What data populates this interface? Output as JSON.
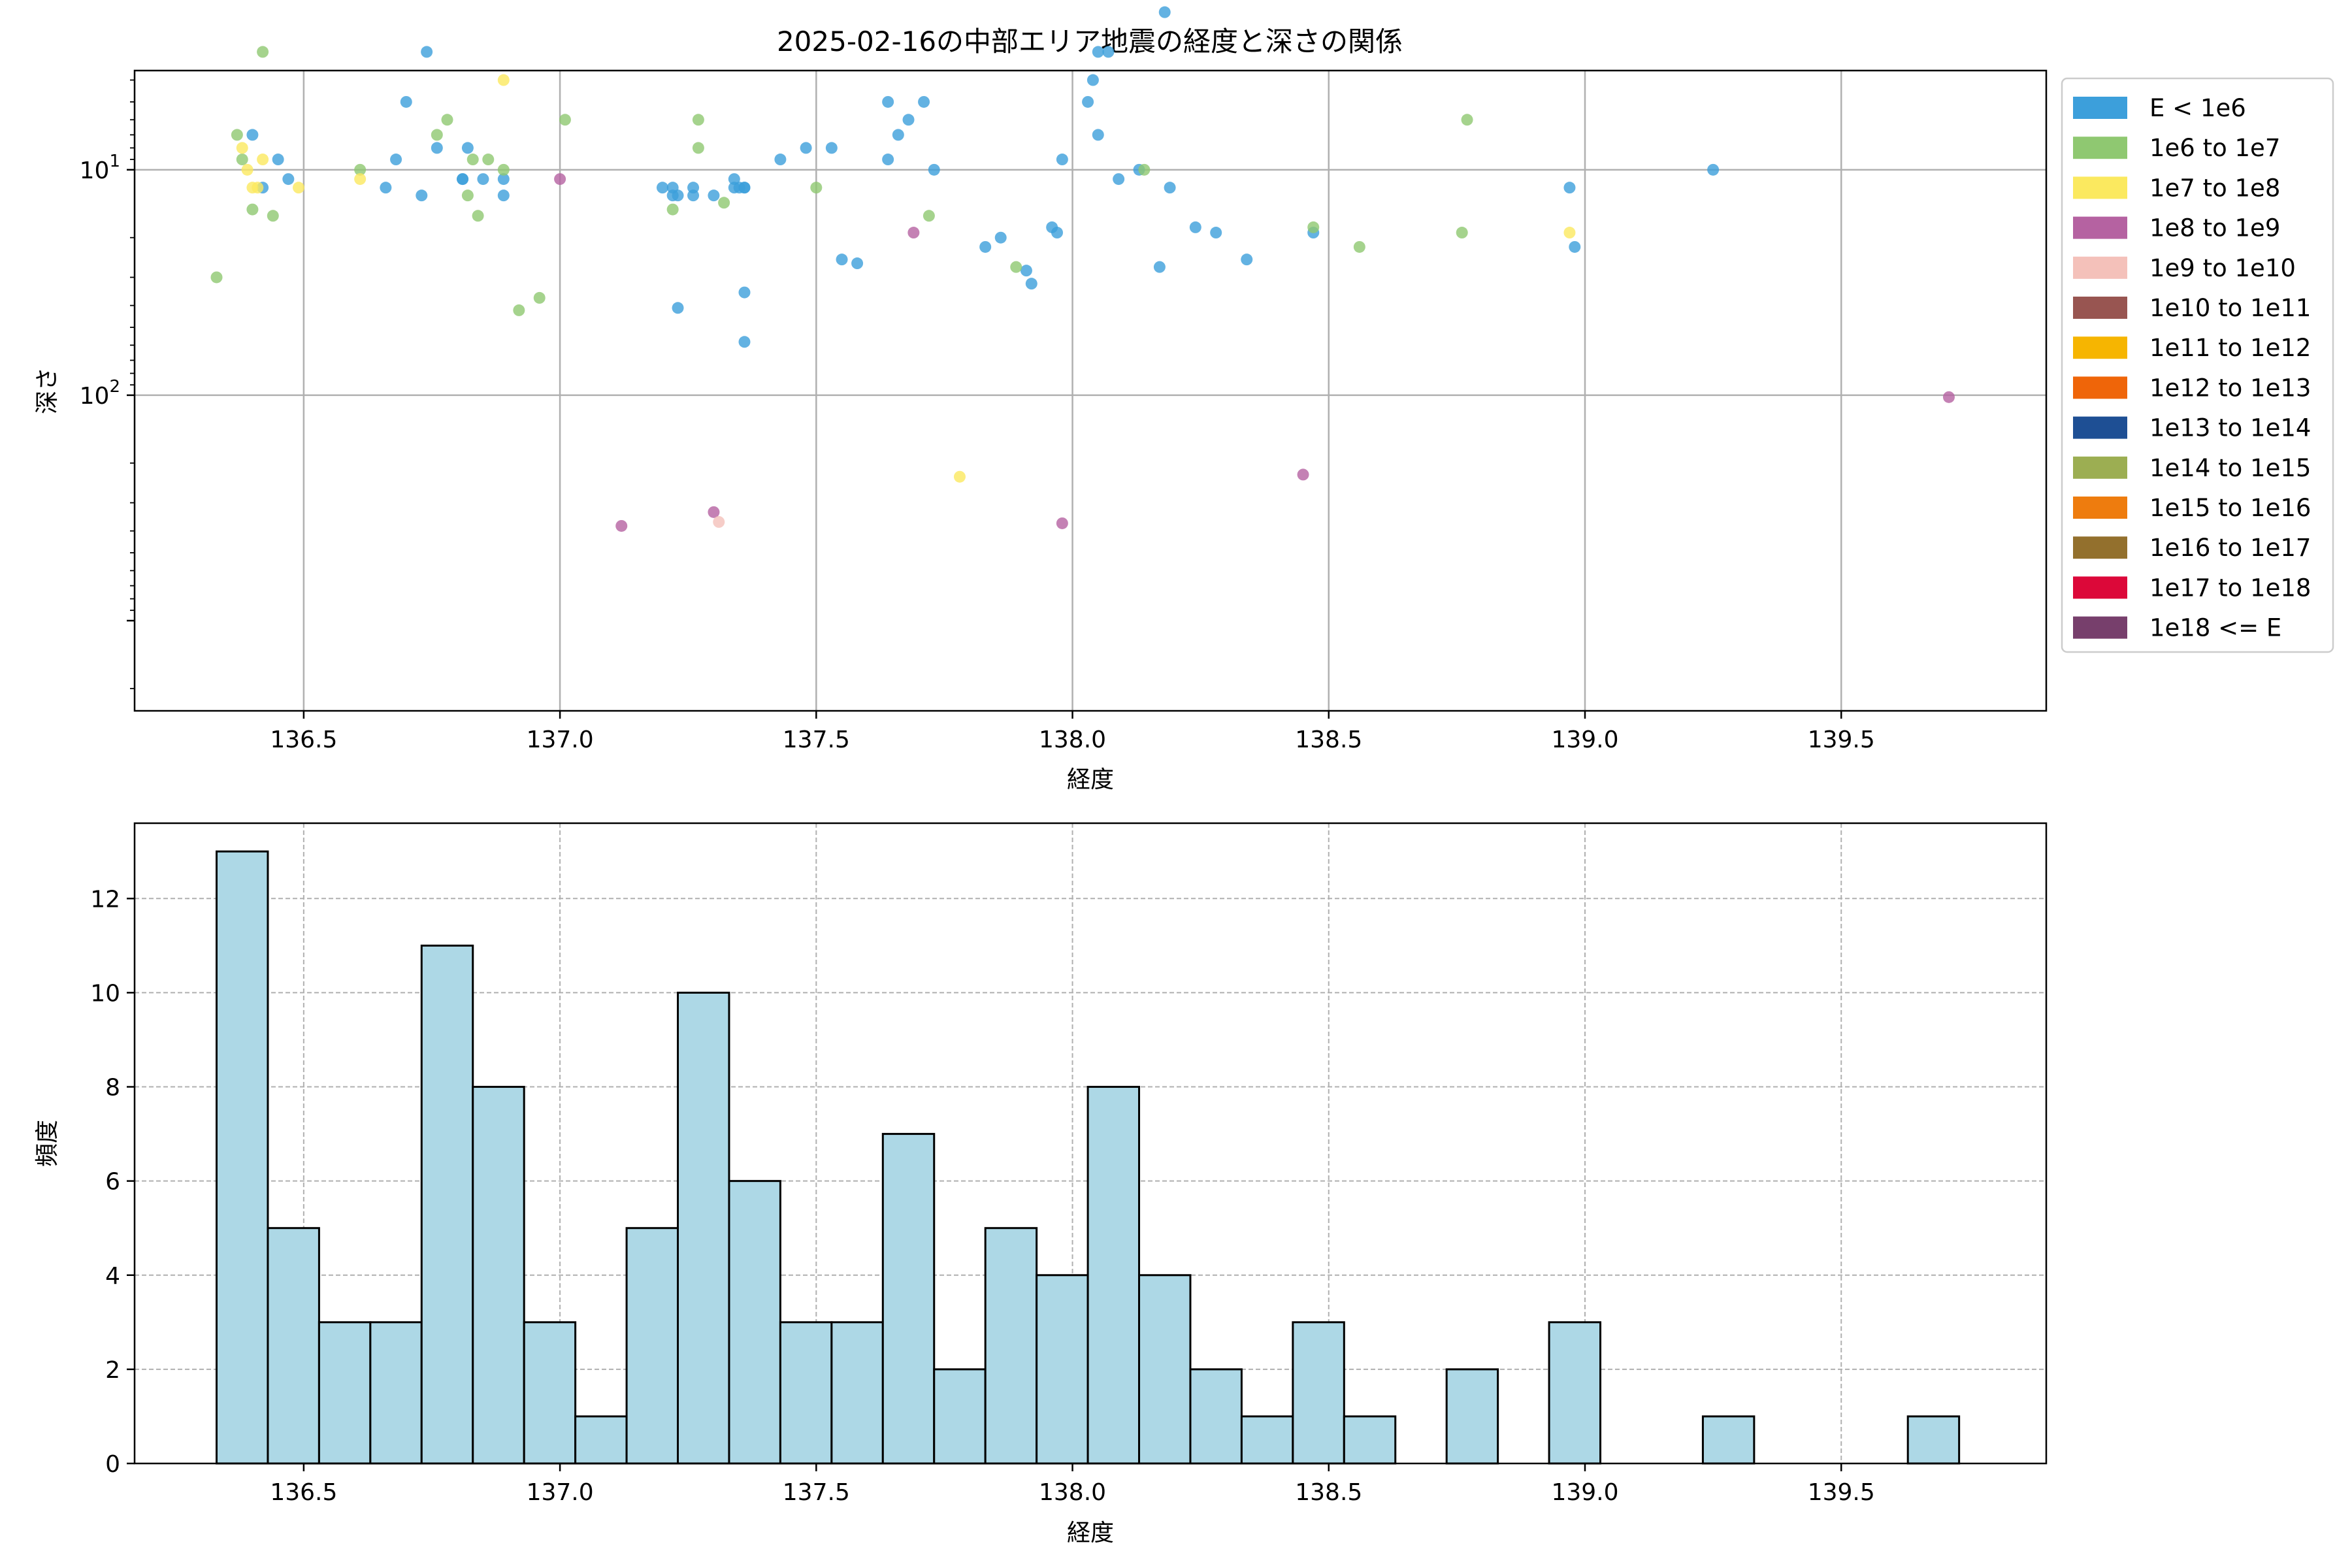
{
  "chart_data": [
    {
      "type": "scatter",
      "title": "2025-02-16の中部エリア地震の経度と深さの関係",
      "xlabel": "経度",
      "ylabel": "深さ",
      "xlim": [
        136.17,
        139.9
      ],
      "ylim_log_inverted": [
        3.4,
        0.56
      ],
      "y_scale": "log",
      "y_inverted": true,
      "xticks": [
        "136.5",
        "137.0",
        "137.5",
        "138.0",
        "138.5",
        "139.0",
        "139.5"
      ],
      "xtick_values": [
        136.5,
        137.0,
        137.5,
        138.0,
        138.5,
        139.0,
        139.5
      ],
      "ytick_values": [
        10,
        100
      ],
      "yticks": [
        {
          "base": "10",
          "exp": "1"
        },
        {
          "base": "10",
          "exp": "2"
        }
      ],
      "grid": true,
      "legend_position": "outside right, top",
      "legend": [
        {
          "label": "E < 1e6",
          "color": "#3c9fdb"
        },
        {
          "label": "1e6 to 1e7",
          "color": "#8fc871"
        },
        {
          "label": "1e7 to 1e8",
          "color": "#fbe95f"
        },
        {
          "label": "1e8 to 1e9",
          "color": "#b562a1"
        },
        {
          "label": "1e9 to 1e10",
          "color": "#f4c1ba"
        },
        {
          "label": "1e10 to 1e11",
          "color": "#985551"
        },
        {
          "label": "1e11 to 1e12",
          "color": "#f6b501"
        },
        {
          "label": "1e12 to 1e13",
          "color": "#ef6509"
        },
        {
          "label": "1e13 to 1e14",
          "color": "#1e4f94"
        },
        {
          "label": "1e14 to 1e15",
          "color": "#9cae52"
        },
        {
          "label": "1e15 to 1e16",
          "color": "#ee7c0e"
        },
        {
          "label": "1e16 to 1e17",
          "color": "#93702d"
        },
        {
          "label": "1e17 to 1e18",
          "color": "#dc0839"
        },
        {
          "label": "1e18 <= E",
          "color": "#773f6c"
        }
      ],
      "series": [
        {
          "name": "E < 1e6",
          "color": "#3c9fdb",
          "points": [
            [
              136.4,
              7
            ],
            [
              136.42,
              12
            ],
            [
              136.45,
              9
            ],
            [
              136.47,
              11
            ],
            [
              136.66,
              12
            ],
            [
              136.68,
              9
            ],
            [
              136.7,
              5
            ],
            [
              136.73,
              13
            ],
            [
              136.74,
              3
            ],
            [
              136.76,
              8
            ],
            [
              136.81,
              11
            ],
            [
              136.82,
              8
            ],
            [
              136.81,
              11
            ],
            [
              136.85,
              11
            ],
            [
              136.89,
              11
            ],
            [
              136.89,
              13
            ],
            [
              137.2,
              12
            ],
            [
              137.22,
              12
            ],
            [
              137.23,
              13
            ],
            [
              137.22,
              13
            ],
            [
              137.26,
              12
            ],
            [
              137.26,
              13
            ],
            [
              137.3,
              13
            ],
            [
              137.34,
              11
            ],
            [
              137.34,
              12
            ],
            [
              137.35,
              12
            ],
            [
              137.36,
              12
            ],
            [
              137.36,
              12
            ],
            [
              137.23,
              41
            ],
            [
              137.36,
              35
            ],
            [
              137.36,
              58
            ],
            [
              137.43,
              9
            ],
            [
              137.48,
              8
            ],
            [
              137.53,
              8
            ],
            [
              137.55,
              25
            ],
            [
              137.58,
              26
            ],
            [
              137.64,
              5
            ],
            [
              137.64,
              9
            ],
            [
              137.66,
              7
            ],
            [
              137.68,
              6
            ],
            [
              137.71,
              5
            ],
            [
              137.73,
              10
            ],
            [
              137.83,
              22
            ],
            [
              137.86,
              20
            ],
            [
              137.91,
              28
            ],
            [
              137.92,
              32
            ],
            [
              137.96,
              18
            ],
            [
              137.97,
              19
            ],
            [
              137.98,
              9
            ],
            [
              138.03,
              5
            ],
            [
              138.04,
              4
            ],
            [
              138.05,
              3
            ],
            [
              138.07,
              3
            ],
            [
              138.05,
              7
            ],
            [
              138.09,
              11
            ],
            [
              138.13,
              10
            ],
            [
              138.17,
              27
            ],
            [
              138.18,
              2
            ],
            [
              138.19,
              12
            ],
            [
              138.24,
              18
            ],
            [
              138.28,
              19
            ],
            [
              138.34,
              25
            ],
            [
              138.47,
              19
            ],
            [
              138.97,
              12
            ],
            [
              138.98,
              22
            ],
            [
              139.25,
              10
            ]
          ]
        },
        {
          "name": "1e6 to 1e7",
          "color": "#8fc871",
          "points": [
            [
              136.33,
              30
            ],
            [
              136.37,
              7
            ],
            [
              136.38,
              9
            ],
            [
              136.4,
              15
            ],
            [
              136.42,
              3
            ],
            [
              136.44,
              16
            ],
            [
              136.61,
              10
            ],
            [
              136.76,
              7
            ],
            [
              136.78,
              6
            ],
            [
              136.82,
              13
            ],
            [
              136.83,
              9
            ],
            [
              136.84,
              16
            ],
            [
              136.86,
              9
            ],
            [
              136.89,
              10
            ],
            [
              136.92,
              42
            ],
            [
              136.96,
              37
            ],
            [
              137.01,
              6
            ],
            [
              137.22,
              15
            ],
            [
              137.27,
              6
            ],
            [
              137.27,
              8
            ],
            [
              137.32,
              14
            ],
            [
              137.5,
              12
            ],
            [
              137.72,
              16
            ],
            [
              137.89,
              27
            ],
            [
              138.14,
              10
            ],
            [
              138.47,
              18
            ],
            [
              138.56,
              22
            ],
            [
              138.76,
              19
            ],
            [
              138.77,
              6
            ]
          ]
        },
        {
          "name": "1e7 to 1e8",
          "color": "#fbe95f",
          "points": [
            [
              136.38,
              8
            ],
            [
              136.39,
              10
            ],
            [
              136.4,
              12
            ],
            [
              136.41,
              12
            ],
            [
              136.42,
              9
            ],
            [
              136.49,
              12
            ],
            [
              136.61,
              11
            ],
            [
              136.89,
              4
            ],
            [
              137.78,
              230
            ],
            [
              138.97,
              19
            ]
          ]
        },
        {
          "name": "1e8 to 1e9",
          "color": "#b562a1",
          "points": [
            [
              137.0,
              11
            ],
            [
              137.12,
              380
            ],
            [
              137.3,
              330
            ],
            [
              137.69,
              19
            ],
            [
              137.98,
              370
            ],
            [
              138.45,
              225
            ],
            [
              139.71,
              102
            ]
          ]
        },
        {
          "name": "1e9 to 1e10",
          "color": "#f4c1ba",
          "points": [
            [
              137.31,
              365
            ]
          ]
        }
      ]
    },
    {
      "type": "bar",
      "title": "",
      "xlabel": "経度",
      "ylabel": "頻度",
      "xlim": [
        136.17,
        139.9
      ],
      "ylim": [
        0,
        13.6
      ],
      "xticks": [
        "136.5",
        "137.0",
        "137.5",
        "138.0",
        "138.5",
        "139.0",
        "139.5"
      ],
      "xtick_values": [
        136.5,
        137.0,
        137.5,
        138.0,
        138.5,
        139.0,
        139.5
      ],
      "yticks": [
        "0",
        "2",
        "4",
        "6",
        "8",
        "10",
        "12"
      ],
      "ytick_values": [
        0,
        2,
        4,
        6,
        8,
        10,
        12
      ],
      "grid": true,
      "bar_color": "#add8e6",
      "bin_start": 136.33,
      "bin_width": 0.1,
      "values": [
        13,
        5,
        3,
        3,
        11,
        8,
        3,
        1,
        5,
        10,
        6,
        3,
        3,
        7,
        2,
        5,
        4,
        8,
        4,
        2,
        1,
        3,
        1,
        0,
        2,
        0,
        3,
        0,
        0,
        1,
        0,
        0,
        0,
        1
      ]
    }
  ]
}
